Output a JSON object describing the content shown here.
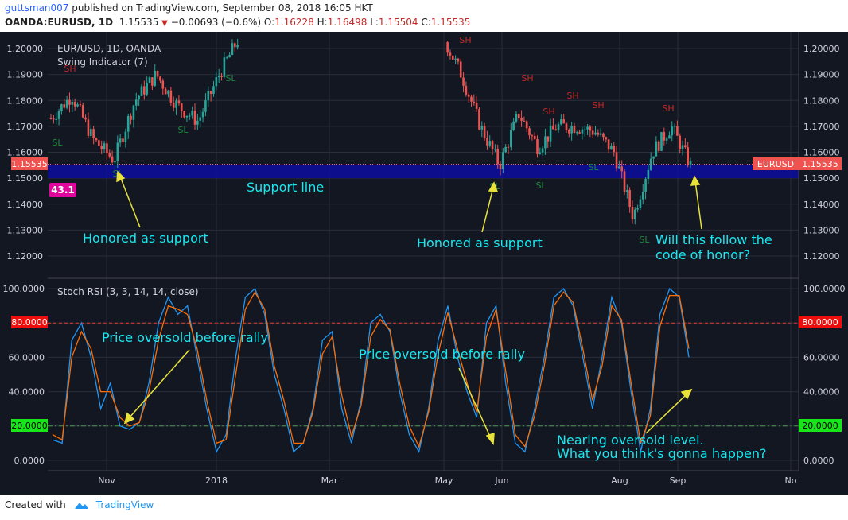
{
  "header": {
    "user": "guttsman007",
    "published": "published on TradingView.com, September 08, 2018 16:05 HKT",
    "symbol": "OANDA:EURUSD, 1D",
    "last": "1.15535",
    "change": "−0.00693 (−0.6%)",
    "o_label": "O:",
    "o_value": "1.16228",
    "h_label": "H:",
    "h_value": "1.16498",
    "l_label": "L:",
    "l_value": "1.15504",
    "c_label": "C:",
    "c_value": "1.15535"
  },
  "colors": {
    "bg": "#131722",
    "grid": "#2a2e39",
    "up": "#26a69a",
    "down": "#ef5350",
    "stoch_k": "#2196f3",
    "stoch_d": "#ff6d00",
    "support_band": "#0d0d9e",
    "annotation": "#19e8f0",
    "arrow": "#e8e23a",
    "pill_red": "#ef0e0e",
    "pill_green": "#19e619"
  },
  "price_pane": {
    "title": "EUR/USD, 1D, OANDA",
    "indicator": "Swing Indicator (7)",
    "y_ticks": [
      "1.20000",
      "1.19000",
      "1.18000",
      "1.17000",
      "1.16000",
      "1.15000",
      "1.14000",
      "1.13000",
      "1.12000"
    ],
    "last_price_label": "1.15535",
    "symbol_tag": "EURUSD",
    "pill_value": "43.1",
    "swing_labels": {
      "high": "SH",
      "low": "SL"
    },
    "annotations": {
      "support_line": "Support line",
      "honored_1": "Honored as support",
      "honored_2": "Honored as support",
      "question_line1": "Will this follow the",
      "question_line2": "code of honor?"
    }
  },
  "stoch_pane": {
    "title": "Stoch RSI (3, 3, 14, 14, close)",
    "y_ticks": [
      "100.0000",
      "80.0000",
      "60.0000",
      "40.0000",
      "20.0000",
      "0.0000"
    ],
    "level_high_label": "80.0000",
    "level_low_label": "20.0000",
    "annotations": {
      "oversold_1": "Price oversold before rally",
      "oversold_2": "Price oversold before rally",
      "nearing_line1": "Nearing oversold level.",
      "nearing_line2": "What you think's gonna happen?"
    }
  },
  "x_axis": {
    "labels": [
      "Nov",
      "2018",
      "Mar",
      "May",
      "Jun",
      "Aug",
      "Sep",
      "No"
    ]
  },
  "footer": {
    "created_with": "Created with",
    "brand": "TradingView"
  },
  "chart_data": [
    {
      "type": "candlestick",
      "title": "EUR/USD, 1D, OANDA",
      "ylim": [
        1.115,
        1.205
      ],
      "y_ticks": [
        1.2,
        1.19,
        1.18,
        1.17,
        1.16,
        1.15,
        1.14,
        1.13,
        1.12
      ],
      "x_labels": [
        "Nov",
        "2018",
        "Mar",
        "May",
        "Jun",
        "Aug",
        "Sep",
        "No"
      ],
      "last_close": 1.15535,
      "support_band": [
        1.15,
        1.155
      ],
      "approx_closes": [
        {
          "x": "Oct",
          "y": 1.173
        },
        {
          "x": "late Oct",
          "y": 1.182
        },
        {
          "x": "early Nov",
          "y": 1.165
        },
        {
          "x": "Nov",
          "y": 1.157
        },
        {
          "x": "mid Nov",
          "y": 1.18
        },
        {
          "x": "late Nov",
          "y": 1.19
        },
        {
          "x": "Dec",
          "y": 1.178
        },
        {
          "x": "mid Dec",
          "y": 1.172
        },
        {
          "x": "late Dec",
          "y": 1.19
        },
        {
          "x": "2018",
          "y": 1.205
        },
        {
          "x": "late Apr",
          "y": 1.205
        },
        {
          "x": "May",
          "y": 1.19
        },
        {
          "x": "mid May",
          "y": 1.17
        },
        {
          "x": "late May",
          "y": 1.155
        },
        {
          "x": "Jun",
          "y": 1.175
        },
        {
          "x": "mid Jun",
          "y": 1.162
        },
        {
          "x": "late Jun",
          "y": 1.17
        },
        {
          "x": "Jul",
          "y": 1.17
        },
        {
          "x": "late Jul",
          "y": 1.168
        },
        {
          "x": "early Aug",
          "y": 1.16
        },
        {
          "x": "mid Aug",
          "y": 1.135
        },
        {
          "x": "late Aug",
          "y": 1.16
        },
        {
          "x": "end Aug",
          "y": 1.17
        },
        {
          "x": "Sep",
          "y": 1.155
        }
      ]
    },
    {
      "type": "line",
      "title": "Stoch RSI (3, 3, 14, 14, close)",
      "ylim": [
        0,
        100
      ],
      "y_ticks": [
        100,
        80,
        60,
        40,
        20,
        0
      ],
      "levels": [
        80,
        20
      ],
      "series": [
        {
          "name": "K",
          "values": [
            12,
            10,
            70,
            80,
            60,
            30,
            45,
            20,
            18,
            22,
            45,
            80,
            95,
            85,
            90,
            60,
            30,
            5,
            15,
            60,
            95,
            100,
            85,
            50,
            30,
            5,
            10,
            30,
            70,
            75,
            30,
            10,
            35,
            80,
            85,
            75,
            40,
            15,
            5,
            30,
            70,
            90,
            60,
            40,
            25,
            80,
            90,
            45,
            10,
            5,
            30,
            60,
            95,
            100,
            90,
            60,
            30,
            60,
            95,
            80,
            40,
            5,
            30,
            85,
            100,
            95,
            60
          ]
        },
        {
          "name": "D",
          "values": [
            15,
            12,
            60,
            75,
            65,
            40,
            40,
            25,
            20,
            22,
            40,
            70,
            90,
            88,
            85,
            65,
            35,
            10,
            12,
            50,
            88,
            98,
            88,
            55,
            35,
            10,
            10,
            28,
            62,
            72,
            38,
            14,
            32,
            72,
            82,
            76,
            45,
            20,
            8,
            28,
            62,
            86,
            65,
            45,
            28,
            72,
            88,
            52,
            15,
            8,
            26,
            55,
            90,
            98,
            92,
            65,
            35,
            55,
            90,
            82,
            45,
            10,
            26,
            78,
            96,
            96,
            65
          ]
        }
      ]
    }
  ]
}
